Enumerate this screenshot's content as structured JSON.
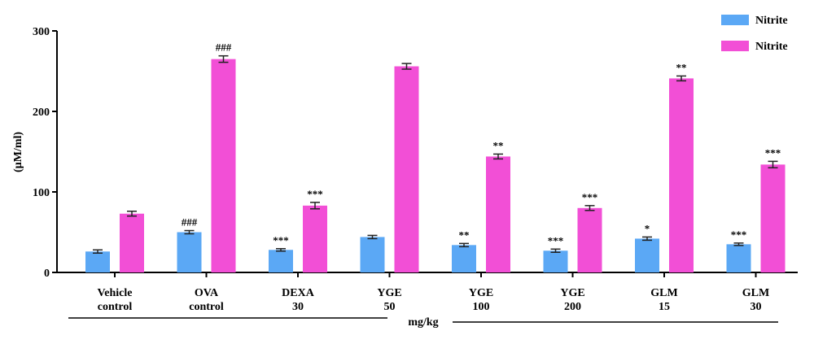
{
  "chart_data": {
    "type": "bar",
    "ylabel": "(µM/ml)",
    "ylim": [
      0,
      300
    ],
    "yticks": [
      "0",
      "100",
      "200",
      "300"
    ],
    "grid": false,
    "legend_position": "top-right",
    "categories": [
      [
        "Vehicle",
        "control"
      ],
      [
        "OVA",
        "control"
      ],
      [
        "DEXA",
        "30"
      ],
      [
        "YGE",
        "50"
      ],
      [
        "YGE",
        "100"
      ],
      [
        "YGE",
        "200"
      ],
      [
        "GLM",
        "15"
      ],
      [
        "GLM",
        "30"
      ]
    ],
    "unit_label": "mg/kg",
    "series": [
      {
        "name": "Nitrite",
        "color": "#5ba8f5",
        "values": [
          26,
          50,
          28,
          44,
          34,
          27,
          42,
          35
        ],
        "errors": [
          2,
          2,
          1.5,
          2,
          2,
          2,
          2,
          1.5
        ],
        "annotations": [
          "",
          "###",
          "***",
          "",
          "**",
          "***",
          "*",
          "***"
        ]
      },
      {
        "name": "Nitrite",
        "color": "#f24fd6",
        "values": [
          73,
          265,
          83,
          256,
          144,
          80,
          241,
          134
        ],
        "errors": [
          3,
          4,
          4,
          3.5,
          3,
          3,
          3,
          4
        ],
        "annotations": [
          "",
          "###",
          "***",
          "",
          "**",
          "***",
          "**",
          "***"
        ]
      }
    ]
  }
}
